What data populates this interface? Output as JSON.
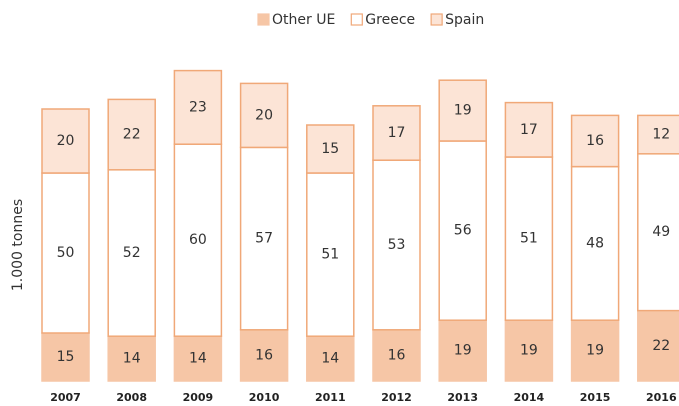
{
  "chart_data": {
    "type": "stacked_bar",
    "y_label": "1.000 tonnes",
    "categories": [
      "2007",
      "2008",
      "2009",
      "2010",
      "2011",
      "2012",
      "2013",
      "2014",
      "2015",
      "2016"
    ],
    "series": [
      {
        "name": "Other UE",
        "color": "#f6c6a6",
        "stroke": "#f6c6a6",
        "values": [
          15,
          14,
          14,
          16,
          14,
          16,
          19,
          19,
          19,
          22
        ]
      },
      {
        "name": "Greece",
        "color": "#ffffff",
        "stroke": "#f0a878",
        "values": [
          50,
          52,
          60,
          57,
          51,
          53,
          56,
          51,
          48,
          49
        ]
      },
      {
        "name": "Spain",
        "color": "#fce4d6",
        "stroke": "#f0a878",
        "values": [
          20,
          22,
          23,
          20,
          15,
          17,
          19,
          17,
          16,
          12
        ]
      }
    ],
    "ylim": [
      0,
      100
    ]
  }
}
